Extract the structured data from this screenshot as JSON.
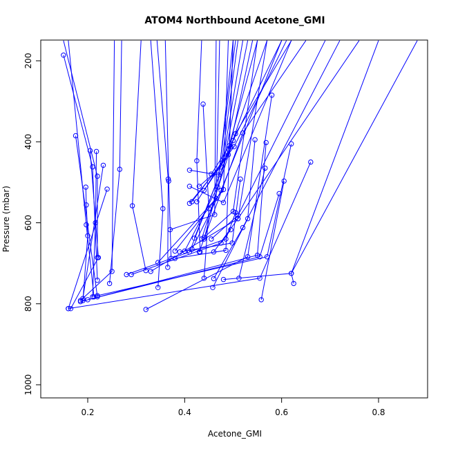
{
  "chart_data": {
    "type": "line",
    "title": "ATOM4 Northbound Acetone_GMI",
    "xlabel": "Acetone_GMI",
    "ylabel": "Pressure (mbar)",
    "xlim": [
      0.1,
      0.9
    ],
    "ylim": [
      1050,
      150
    ],
    "y_reversed": true,
    "grid": false,
    "line_color": "#0000ff",
    "marker": "open-circle",
    "x_ticks": [
      "0.2",
      "0.4",
      "0.6",
      "0.8"
    ],
    "y_ticks": [
      "200",
      "400",
      "600",
      "800",
      "1000"
    ],
    "series": [
      {
        "points": [
          [
            0.15,
            186
          ],
          [
            0.21,
            462
          ],
          [
            0.22,
            742
          ]
        ]
      },
      {
        "points": [
          [
            0.15,
            150
          ],
          [
            0.22,
            485
          ],
          [
            0.22,
            686
          ]
        ]
      },
      {
        "points": [
          [
            0.16,
            150
          ],
          [
            0.197,
            605
          ],
          [
            0.213,
            783
          ]
        ]
      },
      {
        "points": [
          [
            0.175,
            385
          ],
          [
            0.22,
            783
          ]
        ]
      },
      {
        "points": [
          [
            0.196,
            512
          ],
          [
            0.197,
            556
          ],
          [
            0.2,
            632
          ],
          [
            0.19,
            792
          ]
        ]
      },
      {
        "points": [
          [
            0.205,
            422
          ],
          [
            0.222,
            686
          ],
          [
            0.165,
            812
          ]
        ]
      },
      {
        "points": [
          [
            0.218,
            424
          ],
          [
            0.216,
            600
          ],
          [
            0.21,
            783
          ]
        ]
      },
      {
        "points": [
          [
            0.232,
            458
          ],
          [
            0.19,
            787
          ]
        ]
      },
      {
        "points": [
          [
            0.24,
            517
          ],
          [
            0.16,
            812
          ]
        ]
      },
      {
        "points": [
          [
            0.255,
            150
          ],
          [
            0.25,
            720
          ],
          [
            0.185,
            792
          ]
        ]
      },
      {
        "points": [
          [
            0.27,
            150
          ],
          [
            0.266,
            468
          ],
          [
            0.245,
            750
          ]
        ]
      },
      {
        "points": [
          [
            0.31,
            150
          ],
          [
            0.292,
            558
          ],
          [
            0.32,
            718
          ]
        ]
      },
      {
        "points": [
          [
            0.33,
            150
          ],
          [
            0.355,
            565
          ],
          [
            0.345,
            760
          ]
        ]
      },
      {
        "points": [
          [
            0.343,
            150
          ],
          [
            0.366,
            492
          ],
          [
            0.365,
            710
          ]
        ]
      },
      {
        "points": [
          [
            0.36,
            150
          ],
          [
            0.367,
            497
          ],
          [
            0.372,
            688
          ]
        ]
      },
      {
        "points": [
          [
            0.435,
            150
          ],
          [
            0.425,
            447
          ],
          [
            0.432,
            672
          ]
        ]
      },
      {
        "points": [
          [
            0.438,
            307
          ],
          [
            0.45,
            565
          ],
          [
            0.44,
            737
          ]
        ]
      },
      {
        "points": [
          [
            0.58,
            285
          ],
          [
            0.53,
            684
          ],
          [
            0.32,
            814
          ]
        ]
      },
      {
        "points": [
          [
            0.62,
            405
          ],
          [
            0.57,
            684
          ],
          [
            0.22,
            780
          ]
        ]
      },
      {
        "points": [
          [
            0.66,
            450
          ],
          [
            0.555,
            737
          ],
          [
            0.16,
            812
          ]
        ]
      },
      {
        "points": [
          [
            0.605,
            497
          ],
          [
            0.558,
            790
          ]
        ]
      },
      {
        "points": [
          [
            0.595,
            528
          ],
          [
            0.555,
            684
          ],
          [
            0.2,
            790
          ]
        ]
      },
      {
        "points": [
          [
            0.568,
            402
          ],
          [
            0.55,
            680
          ],
          [
            0.185,
            795
          ]
        ]
      },
      {
        "points": [
          [
            0.545,
            395
          ],
          [
            0.53,
            590
          ],
          [
            0.458,
            760
          ]
        ]
      },
      {
        "points": [
          [
            0.566,
            465
          ],
          [
            0.512,
            737
          ]
        ]
      },
      {
        "points": [
          [
            0.515,
            492
          ],
          [
            0.498,
            650
          ],
          [
            0.39,
            672
          ]
        ]
      },
      {
        "points": [
          [
            0.505,
            575
          ],
          [
            0.485,
            640
          ],
          [
            0.28,
            728
          ]
        ]
      },
      {
        "points": [
          [
            0.495,
            617
          ],
          [
            0.475,
            650
          ],
          [
            0.29,
            728
          ]
        ]
      },
      {
        "points": [
          [
            0.88,
            150
          ],
          [
            0.62,
            725
          ],
          [
            0.625,
            750
          ]
        ]
      },
      {
        "points": [
          [
            0.8,
            150
          ],
          [
            0.62,
            725
          ],
          [
            0.48,
            740
          ]
        ]
      },
      {
        "points": [
          [
            0.72,
            150
          ],
          [
            0.52,
            612
          ],
          [
            0.46,
            738
          ]
        ]
      },
      {
        "points": [
          [
            0.65,
            150
          ],
          [
            0.52,
            378
          ],
          [
            0.43,
            672
          ]
        ]
      },
      {
        "points": [
          [
            0.62,
            150
          ],
          [
            0.505,
            380
          ],
          [
            0.41,
            672
          ]
        ]
      },
      {
        "points": [
          [
            0.61,
            150
          ],
          [
            0.502,
            412
          ],
          [
            0.415,
            548
          ]
        ]
      },
      {
        "points": [
          [
            0.6,
            150
          ],
          [
            0.5,
            397
          ],
          [
            0.435,
            640
          ]
        ]
      },
      {
        "points": [
          [
            0.57,
            150
          ],
          [
            0.495,
            412
          ],
          [
            0.42,
            638
          ]
        ]
      },
      {
        "points": [
          [
            0.55,
            150
          ],
          [
            0.49,
            418
          ],
          [
            0.44,
            640
          ]
        ]
      },
      {
        "points": [
          [
            0.54,
            150
          ],
          [
            0.49,
            432
          ],
          [
            0.44,
            520
          ]
        ]
      },
      {
        "points": [
          [
            0.53,
            150
          ],
          [
            0.482,
            440
          ],
          [
            0.425,
            548
          ]
        ]
      },
      {
        "points": [
          [
            0.52,
            150
          ],
          [
            0.478,
            452
          ],
          [
            0.41,
            552
          ]
        ]
      },
      {
        "points": [
          [
            0.51,
            150
          ],
          [
            0.475,
            462
          ],
          [
            0.43,
            510
          ]
        ]
      },
      {
        "points": [
          [
            0.505,
            150
          ],
          [
            0.47,
            482
          ],
          [
            0.41,
            470
          ]
        ]
      },
      {
        "points": [
          [
            0.5,
            150
          ],
          [
            0.468,
            512
          ],
          [
            0.4,
            670
          ]
        ]
      },
      {
        "points": [
          [
            0.49,
            150
          ],
          [
            0.48,
            518
          ],
          [
            0.38,
            670
          ]
        ]
      },
      {
        "points": [
          [
            0.465,
            150
          ],
          [
            0.462,
            580
          ],
          [
            0.37,
            617
          ]
        ]
      },
      {
        "points": [
          [
            0.472,
            150
          ],
          [
            0.465,
            540
          ],
          [
            0.345,
            698
          ]
        ]
      },
      {
        "points": [
          [
            0.5,
            150
          ],
          [
            0.485,
            668
          ],
          [
            0.38,
            688
          ]
        ]
      },
      {
        "points": [
          [
            0.55,
            150
          ],
          [
            0.5,
            572
          ],
          [
            0.44,
            636
          ]
        ]
      },
      {
        "points": [
          [
            0.6,
            150
          ],
          [
            0.475,
            520
          ],
          [
            0.415,
            665
          ]
        ]
      },
      {
        "points": [
          [
            0.62,
            150
          ],
          [
            0.48,
            550
          ],
          [
            0.41,
            510
          ]
        ]
      },
      {
        "points": [
          [
            0.69,
            150
          ],
          [
            0.51,
            582
          ],
          [
            0.455,
            640
          ]
        ]
      },
      {
        "points": [
          [
            0.76,
            150
          ],
          [
            0.51,
            590
          ],
          [
            0.33,
            720
          ]
        ]
      },
      {
        "points": [
          [
            0.57,
            150
          ],
          [
            0.51,
            590
          ],
          [
            0.46,
            672
          ]
        ]
      },
      {
        "points": [
          [
            0.5,
            150
          ],
          [
            0.492,
            410
          ],
          [
            0.455,
            480
          ]
        ]
      }
    ]
  }
}
